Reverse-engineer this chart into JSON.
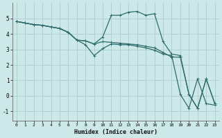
{
  "xlabel": "Humidex (Indice chaleur)",
  "bg_color": "#cce8e8",
  "grid_color": "#aacccc",
  "line_color": "#2d6b6b",
  "xlim": [
    -0.5,
    23.5
  ],
  "ylim": [
    -1.6,
    6.0
  ],
  "xticks": [
    0,
    1,
    2,
    3,
    4,
    5,
    6,
    7,
    8,
    9,
    10,
    11,
    12,
    13,
    14,
    15,
    16,
    17,
    18,
    19,
    20,
    21,
    22,
    23
  ],
  "yticks": [
    -1,
    0,
    1,
    2,
    3,
    4,
    5
  ],
  "lines": [
    {
      "x": [
        0,
        1,
        2,
        3,
        4,
        5,
        6,
        7,
        8,
        9,
        10,
        11,
        12,
        13,
        14,
        15,
        16,
        17,
        18,
        19,
        20,
        21,
        22,
        23
      ],
      "y": [
        4.8,
        4.7,
        4.6,
        4.55,
        4.45,
        4.35,
        4.1,
        3.6,
        3.55,
        3.35,
        3.8,
        5.2,
        5.2,
        5.4,
        5.45,
        5.2,
        5.3,
        3.5,
        2.7,
        2.6,
        0.1,
        -0.8,
        1.1,
        -0.5
      ]
    },
    {
      "x": [
        0,
        1,
        2,
        3,
        4,
        5,
        6,
        7,
        8,
        9,
        10,
        11,
        12,
        13,
        14,
        15,
        16,
        17,
        18,
        19,
        20,
        21,
        22,
        23
      ],
      "y": [
        4.8,
        4.7,
        4.6,
        4.55,
        4.45,
        4.35,
        4.1,
        3.6,
        3.3,
        2.6,
        3.05,
        3.35,
        3.3,
        3.3,
        3.2,
        3.1,
        2.95,
        2.7,
        2.6,
        0.1,
        -0.8,
        1.1,
        -0.5,
        -0.6
      ]
    },
    {
      "x": [
        0,
        1,
        2,
        3,
        4,
        5,
        6,
        7,
        8,
        9,
        10,
        11,
        12,
        13,
        14,
        15,
        16,
        17,
        18,
        19,
        20,
        21,
        22,
        23
      ],
      "y": [
        4.8,
        4.7,
        4.6,
        4.55,
        4.45,
        4.35,
        4.1,
        3.6,
        3.55,
        3.35,
        3.5,
        3.45,
        3.4,
        3.35,
        3.3,
        3.2,
        3.1,
        2.8,
        2.5,
        2.5,
        0.1,
        -0.8,
        1.1,
        -0.5
      ]
    }
  ]
}
